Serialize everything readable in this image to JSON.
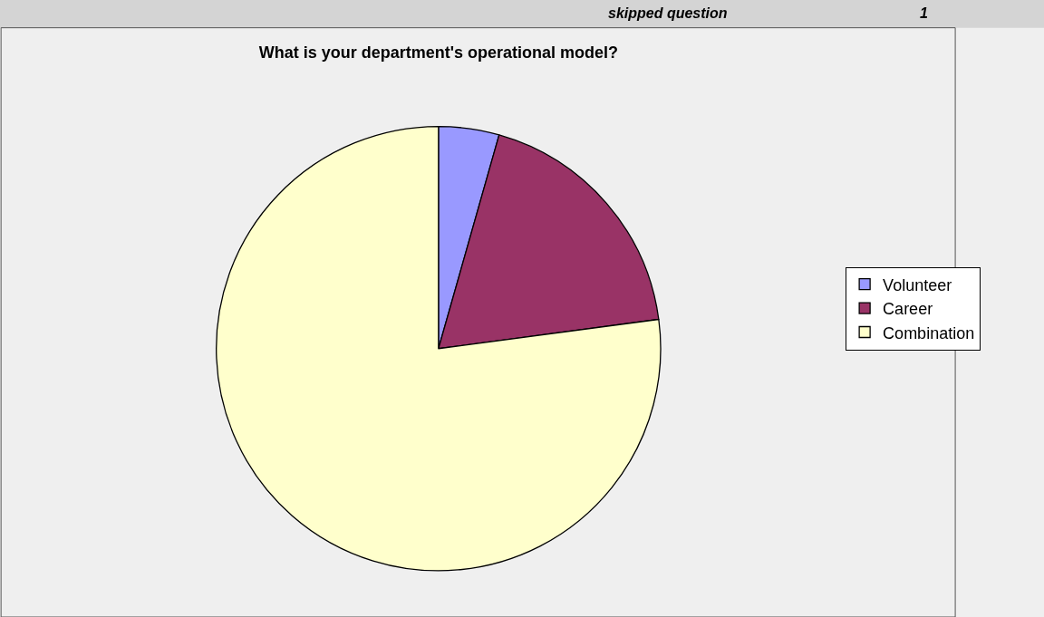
{
  "chart_data": {
    "type": "pie",
    "title": "What is your department's operational model?",
    "categories": [
      "Volunteer",
      "Career",
      "Combination"
    ],
    "values": [
      4.4,
      18.5,
      77.1
    ],
    "colors": [
      "#9999ff",
      "#993366",
      "#ffffcc"
    ],
    "legend": "right",
    "annotations": [
      "skipped question",
      "1"
    ]
  }
}
